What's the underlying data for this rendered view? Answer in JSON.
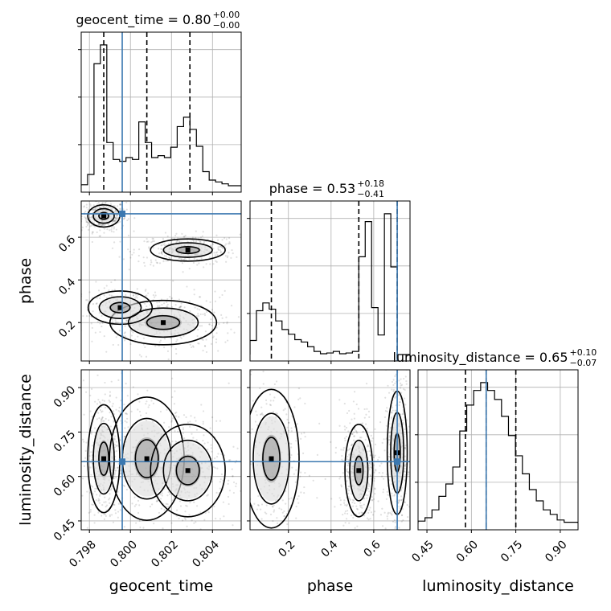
{
  "chart_data": {
    "type": "corner",
    "parameters": [
      "geocent_time",
      "phase",
      "luminosity_distance"
    ],
    "truth_color": "#3b78b0",
    "truths": {
      "geocent_time": 0.7996,
      "phase": 0.71,
      "luminosity_distance": 0.65
    },
    "ranges": {
      "geocent_time": [
        0.7976,
        0.8054
      ],
      "phase": [
        0.02,
        0.77
      ],
      "luminosity_distance": [
        0.42,
        0.96
      ]
    },
    "ticks": {
      "geocent_time": [
        0.798,
        0.8,
        0.802,
        0.804
      ],
      "phase": [
        0.2,
        0.4,
        0.6
      ],
      "luminosity_distance": [
        0.45,
        0.6,
        0.75,
        0.9
      ]
    },
    "tick_labels": {
      "geocent_time": [
        "0.798",
        "0.800",
        "0.802",
        "0.804"
      ],
      "phase": [
        "0.2",
        "0.4",
        "0.6"
      ],
      "luminosity_distance": [
        "0.45",
        "0.60",
        "0.75",
        "0.90"
      ]
    },
    "titles": {
      "geocent_time": {
        "text": "geocent_time = 0.80",
        "plus": "+0.00",
        "minus": "−0.00"
      },
      "phase": {
        "text": "phase = 0.53",
        "plus": "+0.18",
        "minus": "−0.41"
      },
      "luminosity_distance": {
        "text": "luminosity_distance = 0.65",
        "plus": "+0.10",
        "minus": "−0.07"
      }
    },
    "quantiles": {
      "geocent_time": [
        0.7987,
        0.8008,
        0.8029
      ],
      "phase": [
        0.12,
        0.53,
        0.71
      ],
      "luminosity_distance": [
        0.58,
        0.65,
        0.75
      ]
    },
    "histograms": {
      "geocent_time": {
        "edges_range": [
          0.7976,
          0.8054
        ],
        "counts": [
          1,
          12,
          130,
          150,
          46,
          28,
          26,
          30,
          28,
          68,
          46,
          30,
          32,
          30,
          41,
          63,
          73,
          60,
          42,
          15,
          6,
          4,
          2,
          0,
          0
        ]
      },
      "phase": {
        "edges_range": [
          0.02,
          0.77
        ],
        "counts": [
          18,
          56,
          66,
          58,
          43,
          32,
          26,
          19,
          16,
          10,
          4,
          1,
          2,
          4,
          1,
          2,
          4,
          125,
          170,
          60,
          25,
          180,
          112,
          0,
          0
        ]
      },
      "luminosity_distance": {
        "edges_range": [
          0.42,
          0.96
        ],
        "counts": [
          2,
          5,
          12,
          24,
          35,
          50,
          82,
          105,
          118,
          125,
          118,
          110,
          95,
          78,
          60,
          44,
          30,
          20,
          12,
          8,
          3,
          1,
          1
        ]
      }
    },
    "density_modes": {
      "geocent_time__phase": [
        {
          "x": 0.7987,
          "y": 0.7,
          "sx": 0.0003,
          "sy": 0.02,
          "w": 1.0
        },
        {
          "x": 0.8028,
          "y": 0.54,
          "sx": 0.0007,
          "sy": 0.02,
          "w": 0.9
        },
        {
          "x": 0.8016,
          "y": 0.2,
          "sx": 0.001,
          "sy": 0.04,
          "w": 0.9
        },
        {
          "x": 0.7995,
          "y": 0.27,
          "sx": 0.0006,
          "sy": 0.03,
          "w": 0.4
        }
      ],
      "geocent_time__luminosity_distance": [
        {
          "x": 0.7987,
          "y": 0.66,
          "sx": 0.0003,
          "sy": 0.07,
          "w": 1.0
        },
        {
          "x": 0.8008,
          "y": 0.66,
          "sx": 0.0007,
          "sy": 0.08,
          "w": 0.5
        },
        {
          "x": 0.8028,
          "y": 0.62,
          "sx": 0.0007,
          "sy": 0.06,
          "w": 0.9
        }
      ],
      "phase__luminosity_distance": [
        {
          "x": 0.12,
          "y": 0.66,
          "sx": 0.05,
          "sy": 0.09,
          "w": 0.8
        },
        {
          "x": 0.53,
          "y": 0.62,
          "sx": 0.025,
          "sy": 0.06,
          "w": 1.0
        },
        {
          "x": 0.71,
          "y": 0.68,
          "sx": 0.018,
          "sy": 0.08,
          "w": 1.0
        }
      ]
    },
    "grid": true
  }
}
